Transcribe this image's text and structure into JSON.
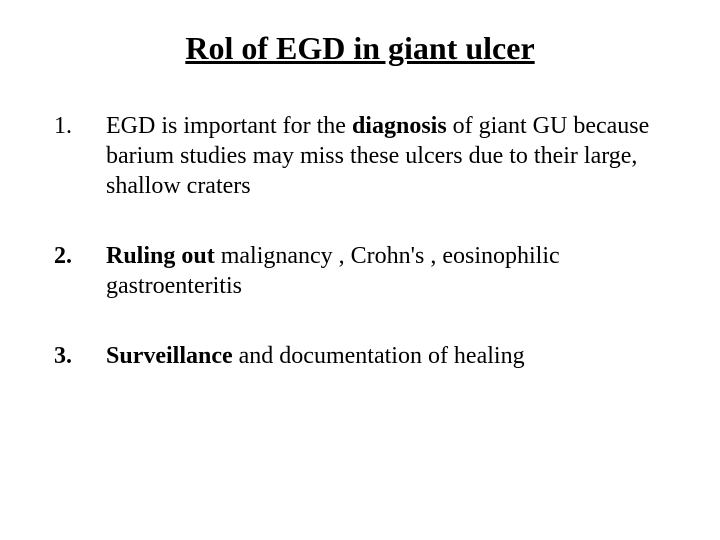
{
  "title": "Rol of EGD in giant ulcer",
  "items": [
    {
      "pre": " EGD is important for the ",
      "bold": "diagnosis",
      "post": " of giant GU because barium  studies may miss these ulcers due to their large, shallow craters",
      "boldMarker": false
    },
    {
      "pre": "",
      "bold": "Ruling out",
      "post": " malignancy , Crohn's ,  eosinophilic gastroenteritis",
      "boldMarker": true
    },
    {
      "pre": "",
      "bold": "Surveillance",
      "post": " and documentation of healing",
      "boldMarker": true
    }
  ]
}
